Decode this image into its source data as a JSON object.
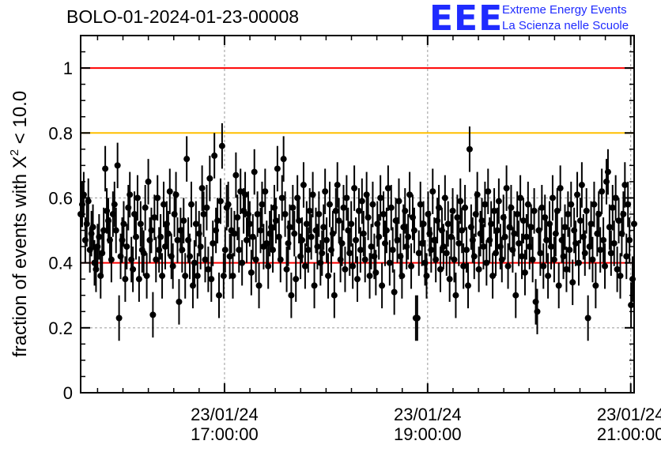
{
  "header": {
    "title": "BOLO-01-2024-01-23-00008"
  },
  "logo": {
    "letters": "EEE",
    "line1": "Extreme Energy Events",
    "line2": "La Scienza nelle Scuole",
    "color": "#1f2bff"
  },
  "chart_data": {
    "type": "scatter",
    "ylabel_prefix": "fraction of events with ",
    "ylabel_symbol": "X",
    "ylabel_exp": "2",
    "ylabel_suffix": " < 10.0",
    "ylim": [
      0,
      1.1
    ],
    "xlim": [
      "2024-01-23T15:35:00",
      "2024-01-23T21:02:00"
    ],
    "y_ticks": [
      {
        "value": 0,
        "label": "0"
      },
      {
        "value": 0.2,
        "label": "0.2"
      },
      {
        "value": 0.4,
        "label": "0.4"
      },
      {
        "value": 0.6,
        "label": "0.6"
      },
      {
        "value": 0.8,
        "label": "0.8"
      },
      {
        "value": 1,
        "label": "1"
      }
    ],
    "x_ticks": [
      {
        "time": "2024-01-23T17:00:00",
        "date": "23/01/24",
        "clock": "17:00:00"
      },
      {
        "time": "2024-01-23T19:00:00",
        "date": "23/01/24",
        "clock": "19:00:00"
      },
      {
        "time": "2024-01-23T21:00:00",
        "date": "23/01/24",
        "clock": "21:00:00"
      }
    ],
    "grid": true,
    "reference_lines": [
      {
        "y": 1.0,
        "color": "#ff0000"
      },
      {
        "y": 0.8,
        "color": "#ffbf00"
      },
      {
        "y": 0.4,
        "color": "#ff0000"
      }
    ],
    "series": [
      {
        "x_start": "2024-01-23T15:35:00",
        "x_end": "2024-01-23T21:02:00",
        "y_error": 0.07,
        "values": [
          0.55,
          0.58,
          0.61,
          0.47,
          0.52,
          0.59,
          0.44,
          0.49,
          0.51,
          0.4,
          0.38,
          0.45,
          0.48,
          0.36,
          0.43,
          0.5,
          0.69,
          0.56,
          0.53,
          0.47,
          0.41,
          0.55,
          0.58,
          0.5,
          0.7,
          0.23,
          0.42,
          0.47,
          0.52,
          0.35,
          0.45,
          0.57,
          0.61,
          0.41,
          0.38,
          0.55,
          0.48,
          0.6,
          0.35,
          0.52,
          0.44,
          0.43,
          0.57,
          0.36,
          0.65,
          0.47,
          0.5,
          0.24,
          0.54,
          0.41,
          0.6,
          0.44,
          0.48,
          0.36,
          0.58,
          0.45,
          0.52,
          0.49,
          0.62,
          0.42,
          0.39,
          0.55,
          0.61,
          0.47,
          0.28,
          0.5,
          0.44,
          0.53,
          0.36,
          0.72,
          0.47,
          0.42,
          0.58,
          0.33,
          0.4,
          0.52,
          0.36,
          0.49,
          0.45,
          0.63,
          0.55,
          0.41,
          0.57,
          0.38,
          0.66,
          0.35,
          0.46,
          0.73,
          0.5,
          0.53,
          0.3,
          0.59,
          0.76,
          0.36,
          0.44,
          0.57,
          0.58,
          0.42,
          0.5,
          0.36,
          0.49,
          0.67,
          0.54,
          0.44,
          0.62,
          0.4,
          0.56,
          0.61,
          0.47,
          0.55,
          0.52,
          0.37,
          0.48,
          0.68,
          0.41,
          0.55,
          0.33,
          0.5,
          0.58,
          0.45,
          0.62,
          0.46,
          0.39,
          0.49,
          0.51,
          0.44,
          0.57,
          0.53,
          0.69,
          0.48,
          0.41,
          0.6,
          0.72,
          0.55,
          0.38,
          0.46,
          0.51,
          0.3,
          0.57,
          0.49,
          0.35,
          0.6,
          0.53,
          0.42,
          0.47,
          0.64,
          0.39,
          0.52,
          0.44,
          0.56,
          0.48,
          0.61,
          0.33,
          0.5,
          0.45,
          0.55,
          0.4,
          0.43,
          0.51,
          0.62,
          0.47,
          0.36,
          0.58,
          0.44,
          0.49,
          0.3,
          0.56,
          0.64,
          0.53,
          0.41,
          0.46,
          0.57,
          0.38,
          0.6,
          0.5,
          0.43,
          0.52,
          0.39,
          0.63,
          0.47,
          0.35,
          0.56,
          0.44,
          0.59,
          0.49,
          0.41,
          0.61,
          0.54,
          0.36,
          0.45,
          0.58,
          0.42,
          0.37,
          0.52,
          0.48,
          0.6,
          0.33,
          0.55,
          0.46,
          0.5,
          0.63,
          0.4,
          0.57,
          0.44,
          0.31,
          0.53,
          0.47,
          0.59,
          0.42,
          0.36,
          0.51,
          0.56,
          0.45,
          0.48,
          0.61,
          0.39,
          0.54,
          0.5,
          0.23,
          0.23,
          0.43,
          0.58,
          0.46,
          0.52,
          0.4,
          0.36,
          0.55,
          0.49,
          0.44,
          0.62,
          0.47,
          0.41,
          0.53,
          0.57,
          0.38,
          0.5,
          0.45,
          0.6,
          0.43,
          0.52,
          0.35,
          0.48,
          0.56,
          0.41,
          0.3,
          0.54,
          0.46,
          0.59,
          0.5,
          0.39,
          0.57,
          0.44,
          0.33,
          0.75,
          0.51,
          0.47,
          0.42,
          0.55,
          0.61,
          0.38,
          0.49,
          0.53,
          0.45,
          0.58,
          0.4,
          0.62,
          0.47,
          0.52,
          0.36,
          0.56,
          0.43,
          0.5,
          0.59,
          0.45,
          0.41,
          0.54,
          0.48,
          0.63,
          0.39,
          0.51,
          0.57,
          0.44,
          0.49,
          0.3,
          0.55,
          0.46,
          0.6,
          0.42,
          0.53,
          0.37,
          0.48,
          0.58,
          0.45,
          0.51,
          0.41,
          0.56,
          0.28,
          0.25,
          0.5,
          0.43,
          0.57,
          0.39,
          0.54,
          0.47,
          0.36,
          0.52,
          0.45,
          0.6,
          0.41,
          0.49,
          0.56,
          0.33,
          0.63,
          0.47,
          0.42,
          0.51,
          0.38,
          0.55,
          0.44,
          0.58,
          0.34,
          0.5,
          0.46,
          0.61,
          0.4,
          0.53,
          0.64,
          0.48,
          0.43,
          0.56,
          0.23,
          0.45,
          0.52,
          0.41,
          0.58,
          0.33,
          0.49,
          0.55,
          0.44,
          0.62,
          0.47,
          0.39,
          0.65,
          0.68,
          0.51,
          0.43,
          0.57,
          0.46,
          0.6,
          0.38,
          0.53,
          0.36,
          0.49,
          0.55,
          0.64,
          0.42,
          0.58,
          0.47,
          0.27,
          0.35,
          0.52
        ]
      }
    ]
  }
}
